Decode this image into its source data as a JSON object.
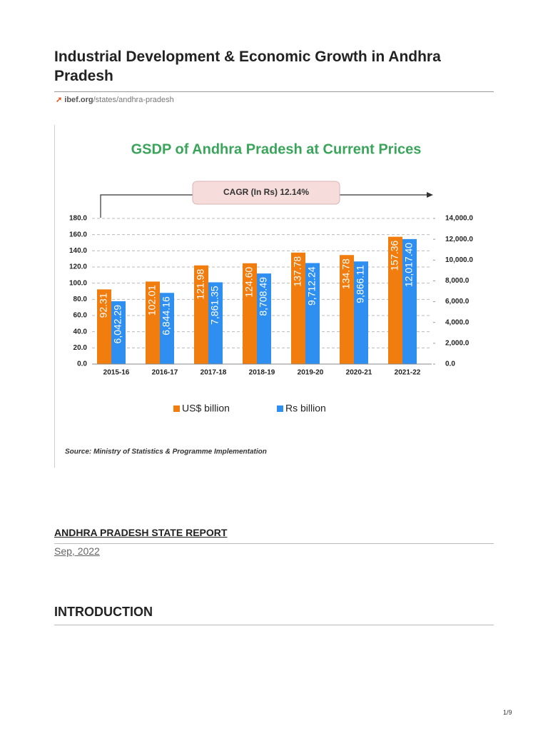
{
  "header": {
    "title": "Industrial Development & Economic Growth in Andhra Pradesh",
    "source_domain": "ibef.org",
    "source_path": "/states/andhra-pradesh"
  },
  "chart_data": {
    "type": "bar",
    "title": "GSDP of Andhra Pradesh at Current Prices",
    "annotation": "CAGR  (In Rs) 12.14%",
    "source": "Source: Ministry of Statistics & Programme Implementation",
    "categories": [
      "2015-16",
      "2016-17",
      "2017-18",
      "2018-19",
      "2019-20",
      "2020-21",
      "2021-22"
    ],
    "series": [
      {
        "name": "US$ billion",
        "color": "#f07d0e",
        "axis": "y",
        "values": [
          92.31,
          102.01,
          121.98,
          124.6,
          137.78,
          134.78,
          157.36
        ],
        "value_labels": [
          "92.31",
          "102.01",
          "121.98",
          "124.60",
          "137.78",
          "134.78",
          "157.36"
        ]
      },
      {
        "name": "Rs billion",
        "color": "#2f8ff0",
        "axis": "y2",
        "values": [
          6042.29,
          6844.16,
          7861.35,
          8708.49,
          9712.24,
          9866.11,
          12017.4
        ],
        "value_labels": [
          "6,042.29",
          "6,844.16",
          "7,861.35",
          "8,708.49",
          "9,712.24",
          "9,866.11",
          "12,017.40"
        ]
      }
    ],
    "ylim": [
      0,
      180
    ],
    "yticks": [
      {
        "value": 0,
        "label": "0.0"
      },
      {
        "value": 20,
        "label": "20.0"
      },
      {
        "value": 40,
        "label": "40.0"
      },
      {
        "value": 60,
        "label": "60.0"
      },
      {
        "value": 80,
        "label": "80.0"
      },
      {
        "value": 100,
        "label": "100.0"
      },
      {
        "value": 120,
        "label": "120.0"
      },
      {
        "value": 140,
        "label": "140.0"
      },
      {
        "value": 160,
        "label": "160.0"
      },
      {
        "value": 180,
        "label": "180.0"
      }
    ],
    "y2lim": [
      0,
      14000
    ],
    "y2ticks": [
      {
        "value": 0,
        "label": "0.0"
      },
      {
        "value": 2000,
        "label": "2,000.0"
      },
      {
        "value": 4000,
        "label": "4,000.0"
      },
      {
        "value": 6000,
        "label": "6,000.0"
      },
      {
        "value": 8000,
        "label": "8,000.0"
      },
      {
        "value": 10000,
        "label": "10,000.0"
      },
      {
        "value": 12000,
        "label": "12,000.0"
      },
      {
        "value": 14000,
        "label": "14,000.0"
      }
    ],
    "grid": true,
    "legend": "bottom"
  },
  "report": {
    "title": "ANDHRA PRADESH STATE REPORT",
    "date": "Sep, 2022"
  },
  "section": {
    "title": "INTRODUCTION"
  },
  "footer": {
    "page": "1/9"
  }
}
